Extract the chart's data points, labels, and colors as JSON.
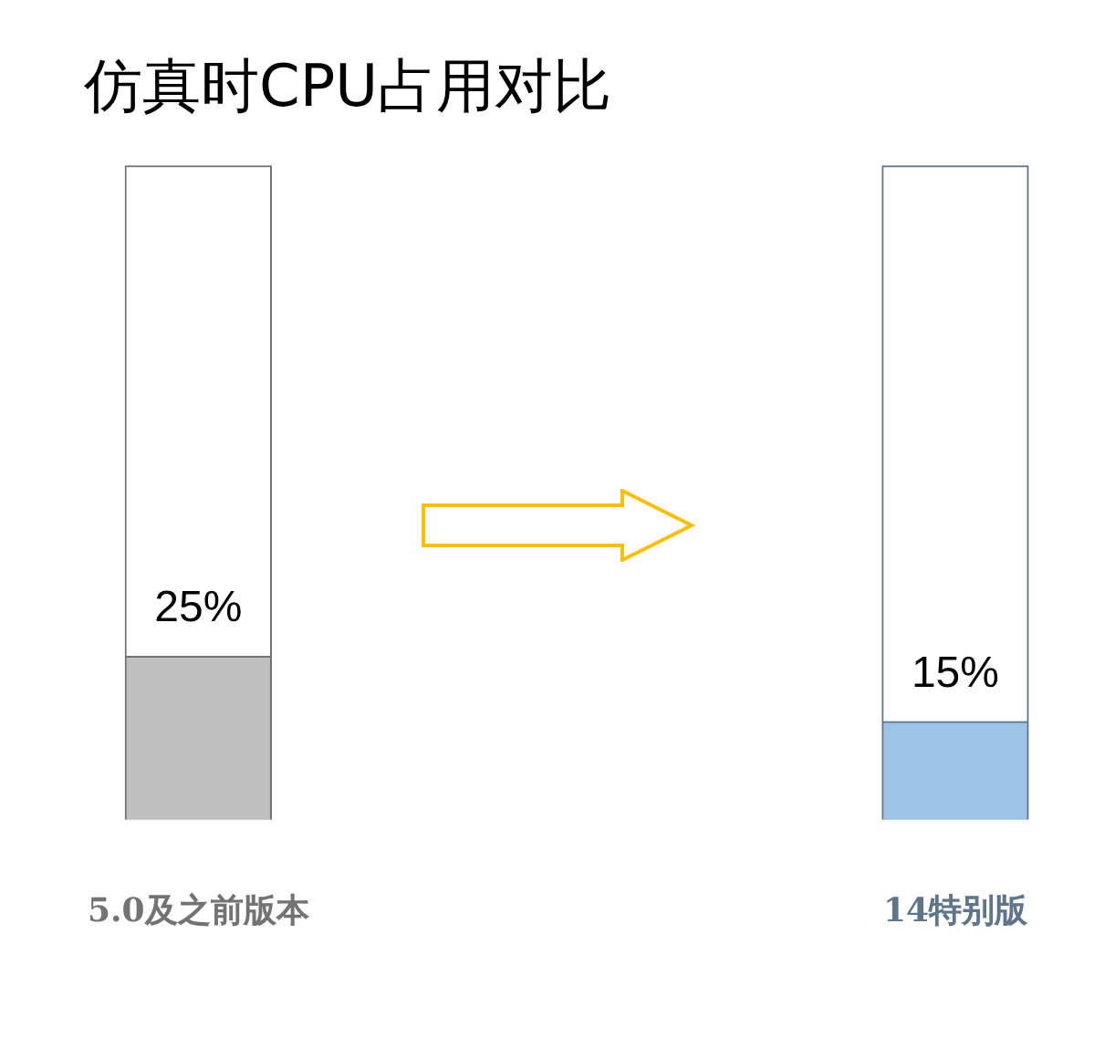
{
  "chart_data": {
    "type": "bar",
    "title": "仿真时CPU占用对比",
    "categories": [
      "5.0及之前版本",
      "14特别版"
    ],
    "stacked": true,
    "series": [
      {
        "colors": [
          "#bfbfbf",
          "#9dc3e6"
        ],
        "values": [
          25,
          15
        ],
        "value_labels": [
          "25%",
          "15%"
        ]
      },
      {
        "colors": [
          "#ffffff",
          "#ffffff"
        ],
        "values": [
          75,
          85
        ]
      }
    ],
    "ylim": [
      0,
      100
    ],
    "grid": false,
    "legend": false
  }
}
